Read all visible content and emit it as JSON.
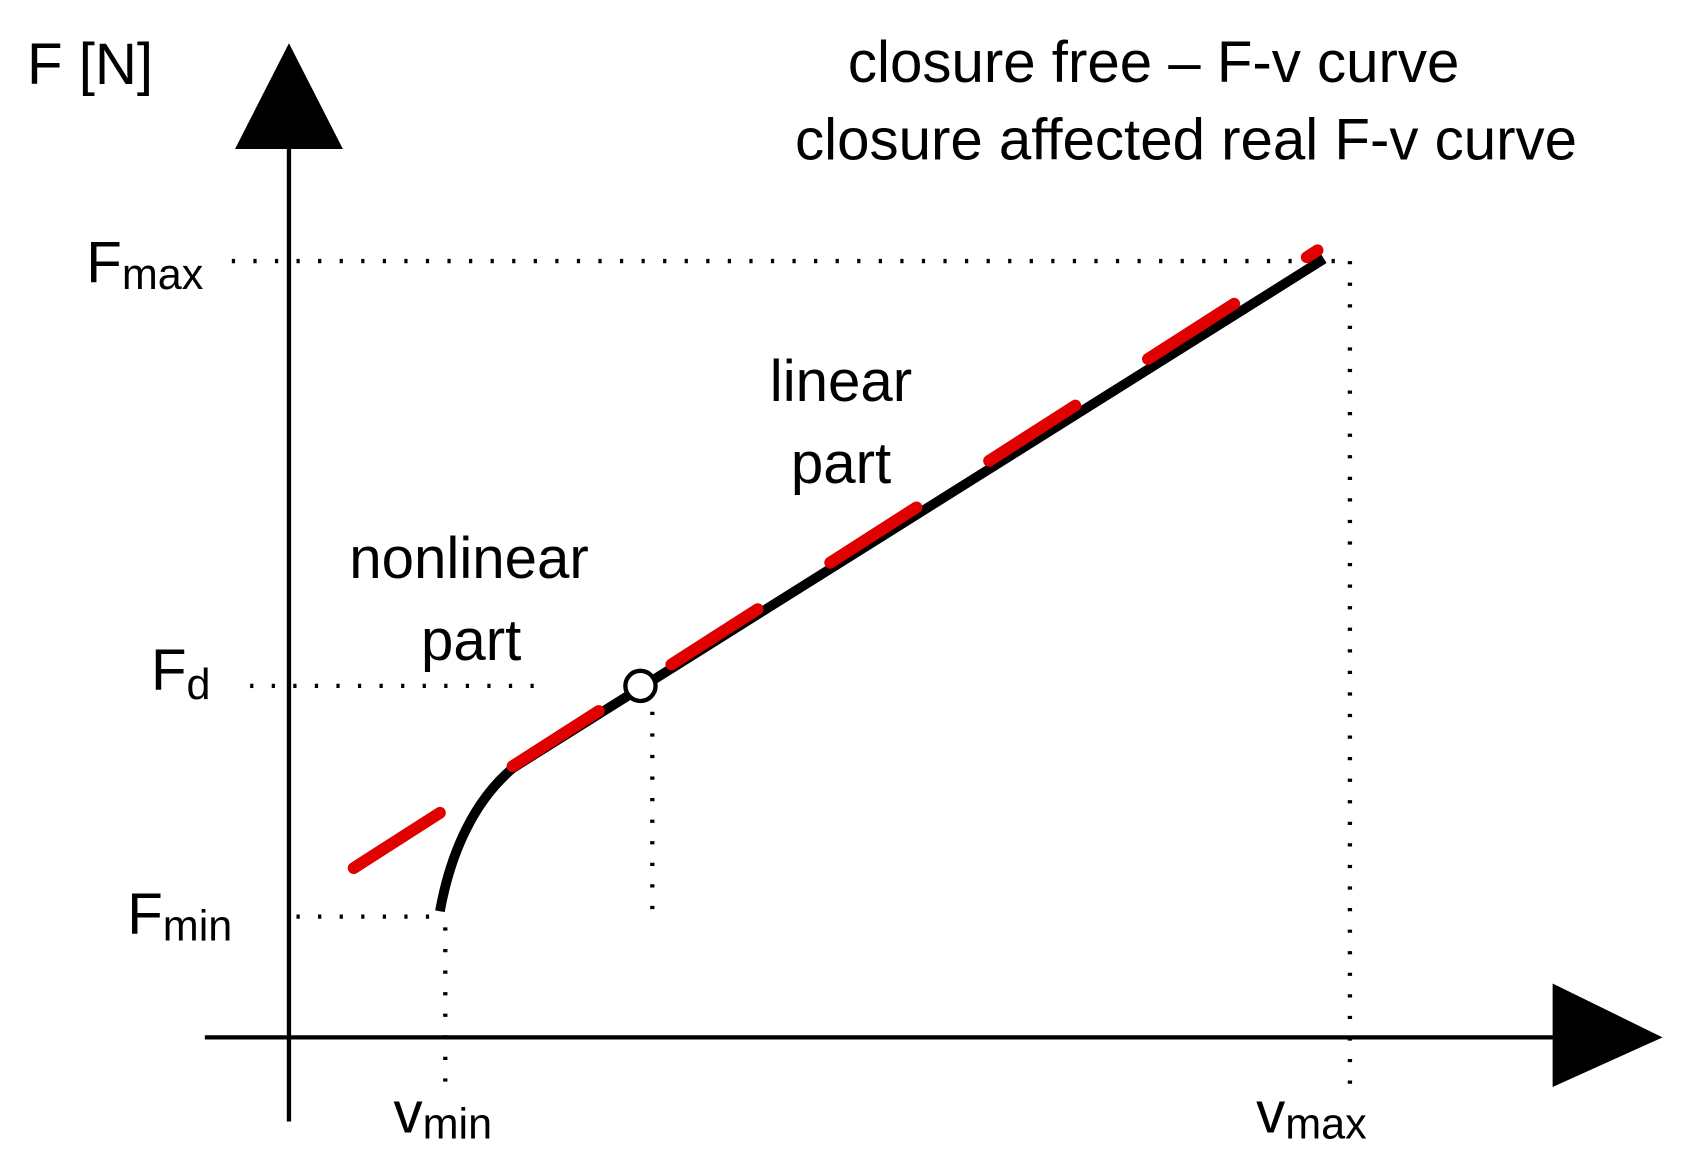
{
  "axes": {
    "y_label": "F [N]",
    "y_ticks": [
      {
        "main": "F",
        "sub": "max"
      },
      {
        "main": "F",
        "sub": "d"
      },
      {
        "main": "F",
        "sub": "min"
      }
    ],
    "x_ticks": [
      {
        "main": "v",
        "sub": "min"
      },
      {
        "main": "v",
        "sub": "max"
      }
    ]
  },
  "legend": [
    "closure free – F-v curve",
    "closure affected real F-v curve"
  ],
  "annotations": {
    "linear": [
      "linear",
      "part"
    ],
    "nonlinear": [
      "nonlinear",
      "part"
    ]
  }
}
